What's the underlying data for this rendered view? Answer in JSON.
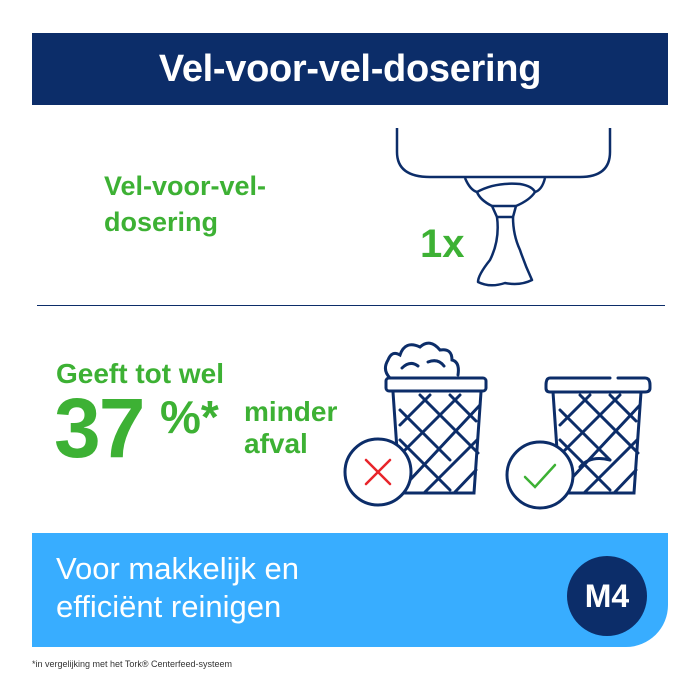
{
  "header": {
    "title": "Vel-voor-vel-dosering"
  },
  "section1": {
    "label_line1": "Vel-voor-vel-",
    "label_line2": "dosering",
    "count": "1x",
    "icon": "dispenser-icon"
  },
  "section2": {
    "line1": "Geeft tot wel",
    "percent": "37",
    "percent_sign": "%*",
    "minder": "minder",
    "afval": "afval",
    "icons": [
      "full-bin-cross-icon",
      "empty-bin-check-icon"
    ]
  },
  "banner": {
    "line1": "Voor makkelijk en",
    "line2": "efficiënt reinigen",
    "badge": "M4"
  },
  "footnote": "*in vergelijking met het Tork® Centerfeed-systeem",
  "colors": {
    "navy": "#0c2d69",
    "green": "#3db134",
    "blue": "#38adff",
    "red": "#e8242a"
  }
}
